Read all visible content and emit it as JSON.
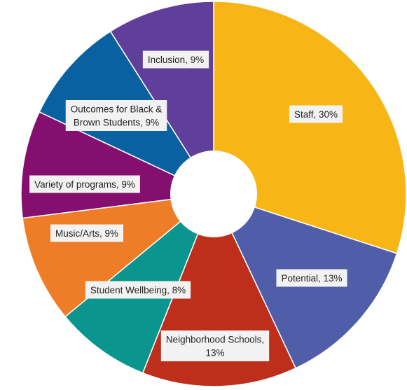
{
  "chart_data": {
    "type": "pie",
    "donut": true,
    "title": "",
    "slices": [
      {
        "label": "Staff, 30%",
        "value": 30,
        "color": "#F8B616"
      },
      {
        "label": "Potential, 13%",
        "value": 13,
        "color": "#505DA8"
      },
      {
        "label": "Neighborhood Schools,\n13%",
        "value": 13,
        "color": "#BE2F1B"
      },
      {
        "label": "Student Wellbeing, 8%",
        "value": 8,
        "color": "#0A958E"
      },
      {
        "label": "Music/Arts, 9%",
        "value": 9,
        "color": "#EF7D27"
      },
      {
        "label": "Variety of programs, 9%",
        "value": 9,
        "color": "#850F6F"
      },
      {
        "label": "Outcomes for Black &\nBrown Students, 9%",
        "value": 9,
        "color": "#0A61A2"
      },
      {
        "label": "Inclusion, 9%",
        "value": 9,
        "color": "#5F3F99"
      }
    ]
  }
}
